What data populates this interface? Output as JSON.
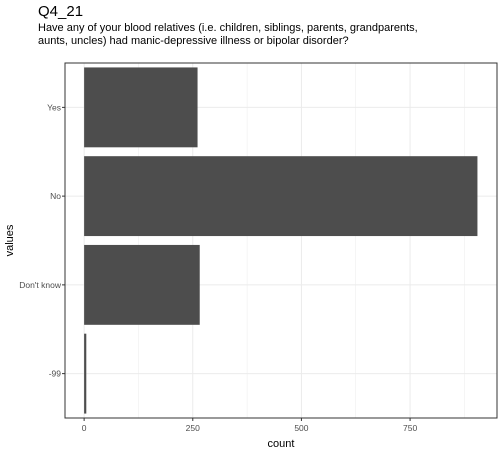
{
  "chart_data": {
    "type": "bar",
    "orientation": "horizontal",
    "title": "Q4_21",
    "subtitle": "Have any of your blood relatives (i.e. children, siblings, parents, grandparents, aunts, uncles) had manic-depressive illness or bipolar disorder?",
    "categories": [
      "Yes",
      "No",
      "Don't know",
      "-99"
    ],
    "values": [
      261,
      905,
      266,
      5
    ],
    "xlabel": "count",
    "ylabel": "values",
    "xlim": [
      -44,
      950
    ],
    "xticks": [
      0,
      250,
      500,
      750
    ],
    "xtick_labels": [
      "0",
      "250",
      "500",
      "750"
    ],
    "grid": true,
    "bar_color": "#4d4d4d",
    "grid_color": "#ebebeb",
    "panel_border_color": "#333333"
  }
}
